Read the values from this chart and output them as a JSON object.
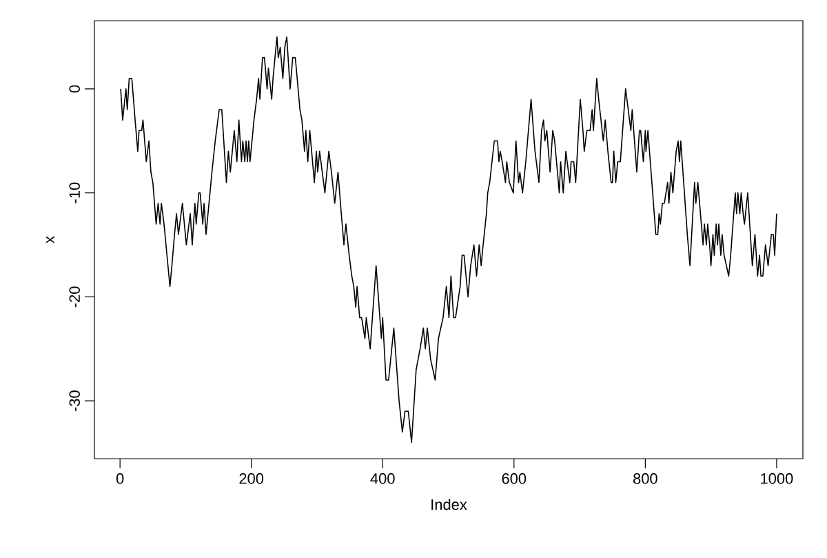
{
  "chart_data": {
    "type": "line",
    "xlabel": "Index",
    "ylabel": "x",
    "color": "#000000",
    "line_style": "solid",
    "xlim": [
      -39,
      1040
    ],
    "ylim": [
      -35.56,
      6.56
    ],
    "xticks": [
      0,
      200,
      400,
      600,
      800,
      1000
    ],
    "yticks": [
      -30,
      -20,
      -10,
      0
    ],
    "x": [
      1,
      4,
      9,
      11,
      14,
      18,
      23,
      27,
      29,
      33,
      35,
      40,
      44,
      47,
      50,
      55,
      58,
      61,
      63,
      67,
      70,
      76,
      79,
      83,
      86,
      89,
      95,
      101,
      107,
      110,
      114,
      116,
      120,
      122,
      126,
      128,
      131,
      134,
      140,
      145,
      149,
      151,
      155,
      162,
      165,
      168,
      174,
      178,
      181,
      185,
      187,
      190,
      192,
      194,
      196,
      198,
      204,
      208,
      211,
      213,
      217,
      220,
      224,
      226,
      231,
      233,
      239,
      241,
      244,
      248,
      251,
      254,
      259,
      263,
      267,
      274,
      277,
      281,
      283,
      286,
      289,
      296,
      299,
      301,
      304,
      312,
      318,
      322,
      327,
      332,
      337,
      341,
      344,
      349,
      353,
      356,
      359,
      361,
      365,
      368,
      373,
      375,
      377,
      381,
      390,
      398,
      400,
      405,
      409,
      417,
      425,
      430,
      434,
      439,
      444,
      451,
      457,
      462,
      465,
      468,
      473,
      480,
      485,
      492,
      497,
      501,
      504,
      508,
      511,
      518,
      521,
      524,
      530,
      534,
      539,
      543,
      547,
      550,
      553,
      558,
      560,
      563,
      570,
      575,
      577,
      579,
      582,
      587,
      589,
      593,
      599,
      603,
      607,
      609,
      613,
      618,
      626,
      632,
      634,
      638,
      642,
      645,
      647,
      650,
      655,
      659,
      662,
      669,
      671,
      675,
      679,
      685,
      687,
      691,
      694,
      701,
      705,
      707,
      711,
      716,
      719,
      721,
      726,
      729,
      736,
      739,
      743,
      748,
      750,
      752,
      755,
      758,
      762,
      770,
      772,
      778,
      780,
      787,
      791,
      793,
      797,
      800,
      801,
      804,
      816,
      819,
      821,
      823,
      826,
      829,
      834,
      836,
      839,
      842,
      847,
      850,
      852,
      854,
      864,
      868,
      875,
      877,
      880,
      888,
      890,
      893,
      895,
      898,
      900,
      903,
      905,
      908,
      910,
      912,
      915,
      917,
      920,
      927,
      930,
      937,
      939,
      941,
      944,
      946,
      949,
      951,
      956,
      963,
      967,
      971,
      974,
      976,
      979,
      983,
      987,
      992,
      995,
      997,
      1000
    ],
    "values": [
      0,
      -3,
      0,
      -2,
      1,
      1,
      -3,
      -6,
      -4,
      -4,
      -3,
      -7,
      -5,
      -8,
      -9,
      -13,
      -11,
      -13,
      -11,
      -13,
      -15,
      -19,
      -17,
      -14,
      -12,
      -14,
      -11,
      -15,
      -12,
      -15,
      -11,
      -13,
      -10,
      -10,
      -13,
      -11,
      -14,
      -12,
      -8,
      -5,
      -3,
      -2,
      -2,
      -9,
      -6,
      -8,
      -4,
      -7,
      -3,
      -7,
      -5,
      -7,
      -5,
      -7,
      -5,
      -7,
      -3,
      -1,
      1,
      -1,
      3,
      3,
      0,
      2,
      -1,
      1,
      5,
      3,
      4,
      1,
      4,
      5,
      0,
      3,
      3,
      -2,
      -3,
      -6,
      -4,
      -7,
      -4,
      -9,
      -6,
      -8,
      -6,
      -10,
      -6,
      -8,
      -11,
      -8,
      -12,
      -15,
      -13,
      -16,
      -18,
      -19,
      -21,
      -19,
      -22,
      -22,
      -24,
      -22,
      -23,
      -25,
      -17,
      -24,
      -22,
      -28,
      -28,
      -23,
      -30,
      -33,
      -31,
      -31,
      -34,
      -27,
      -25,
      -23,
      -25,
      -23,
      -26,
      -28,
      -24,
      -22,
      -19,
      -22,
      -18,
      -22,
      -22,
      -19,
      -16,
      -16,
      -20,
      -17,
      -15,
      -18,
      -15,
      -17,
      -15,
      -12,
      -10,
      -9,
      -5,
      -5,
      -7,
      -6,
      -7,
      -9,
      -7,
      -9,
      -10,
      -5,
      -9,
      -8,
      -10,
      -7,
      -1,
      -6,
      -7,
      -9,
      -4,
      -3,
      -5,
      -4,
      -8,
      -4,
      -5,
      -10,
      -7,
      -10,
      -6,
      -9,
      -7,
      -7,
      -9,
      -1,
      -4,
      -6,
      -4,
      -4,
      -2,
      -4,
      1,
      -1,
      -5,
      -3,
      -6,
      -9,
      -9,
      -6,
      -9,
      -7,
      -7,
      0,
      -1,
      -4,
      -2,
      -8,
      -4,
      -4,
      -7,
      -4,
      -6,
      -4,
      -14,
      -14,
      -12,
      -13,
      -11,
      -11,
      -9,
      -11,
      -8,
      -10,
      -6,
      -5,
      -7,
      -5,
      -14,
      -17,
      -9,
      -11,
      -9,
      -15,
      -13,
      -15,
      -13,
      -15,
      -17,
      -14,
      -16,
      -13,
      -15,
      -13,
      -16,
      -14,
      -16,
      -18,
      -16,
      -10,
      -12,
      -10,
      -12,
      -10,
      -12,
      -13,
      -10,
      -17,
      -14,
      -18,
      -16,
      -18,
      -18,
      -15,
      -17,
      -14,
      -14,
      -16,
      -12
    ]
  }
}
